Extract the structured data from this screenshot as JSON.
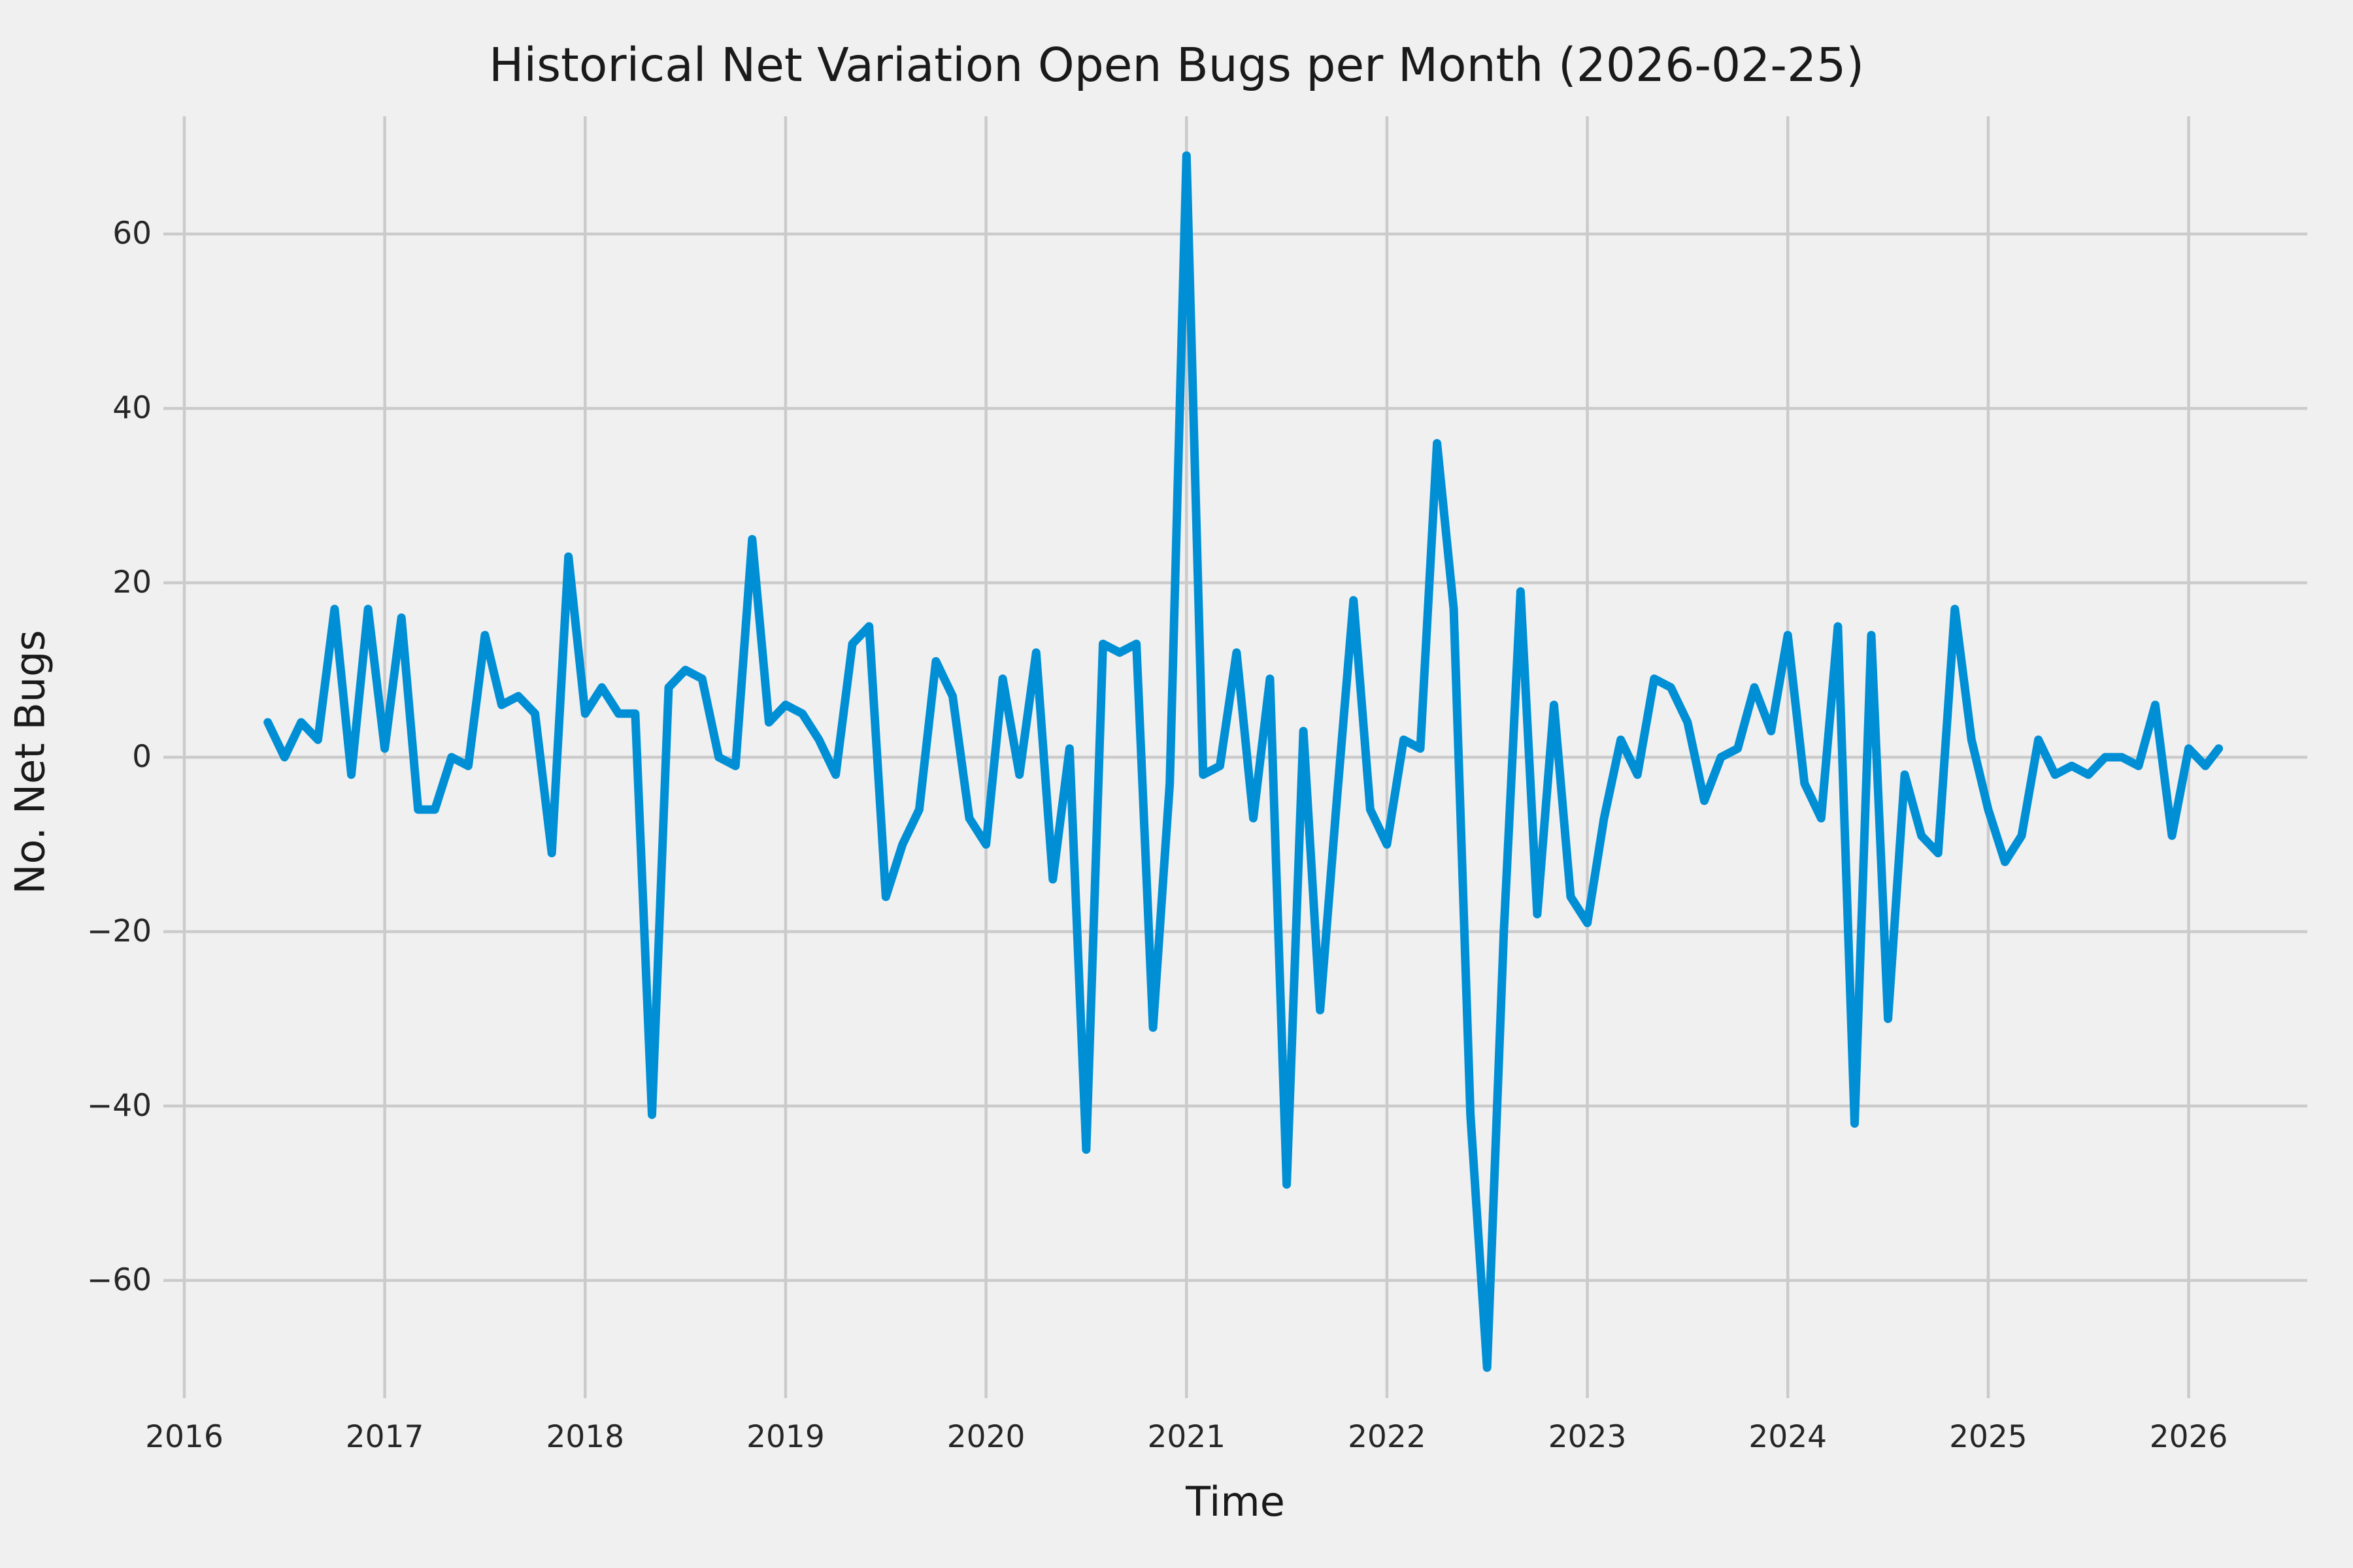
{
  "figure": {
    "title": "Historical Net Variation Open Bugs per Month (2026-02-25)"
  },
  "chart_data": {
    "type": "line",
    "title": "Historical Net Variation Open Bugs per Month (2026-02-25)",
    "xlabel": "Time",
    "ylabel": "No. Net Bugs",
    "legend": false,
    "grid": true,
    "style": "fivethirtyeight",
    "line_color": "#008FD5",
    "grid_color": "#CBCBCB",
    "background_color": "#F0F0F0",
    "text_color": "#1a1a1a",
    "x_tick_labels": [
      "2016",
      "2017",
      "2018",
      "2019",
      "2020",
      "2021",
      "2022",
      "2023",
      "2024",
      "2025",
      "2026"
    ],
    "y_tick_labels": [
      "60",
      "40",
      "20",
      "0",
      "−20",
      "−40",
      "−60"
    ],
    "y_tick_values": [
      60,
      40,
      20,
      0,
      -20,
      -40,
      -60
    ],
    "ylim": [
      -73.5,
      73.5
    ],
    "xlim_months_from_2016_01": [
      -1.25,
      127.1
    ],
    "dates": [
      "2016-06",
      "2016-07",
      "2016-08",
      "2016-09",
      "2016-10",
      "2016-11",
      "2016-12",
      "2017-01",
      "2017-02",
      "2017-03",
      "2017-04",
      "2017-05",
      "2017-06",
      "2017-07",
      "2017-08",
      "2017-09",
      "2017-10",
      "2017-11",
      "2017-12",
      "2018-01",
      "2018-02",
      "2018-03",
      "2018-04",
      "2018-05",
      "2018-06",
      "2018-07",
      "2018-08",
      "2018-09",
      "2018-10",
      "2018-11",
      "2018-12",
      "2019-01",
      "2019-02",
      "2019-03",
      "2019-04",
      "2019-05",
      "2019-06",
      "2019-07",
      "2019-08",
      "2019-09",
      "2019-10",
      "2019-11",
      "2019-12",
      "2020-01",
      "2020-02",
      "2020-03",
      "2020-04",
      "2020-05",
      "2020-06",
      "2020-07",
      "2020-08",
      "2020-09",
      "2020-10",
      "2020-11",
      "2020-12",
      "2021-01",
      "2021-02",
      "2021-03",
      "2021-04",
      "2021-05",
      "2021-06",
      "2021-07",
      "2021-08",
      "2021-09",
      "2021-10",
      "2021-11",
      "2021-12",
      "2022-01",
      "2022-02",
      "2022-03",
      "2022-04",
      "2022-05",
      "2022-06",
      "2022-07",
      "2022-08",
      "2022-09",
      "2022-10",
      "2022-11",
      "2022-12",
      "2023-01",
      "2023-02",
      "2023-03",
      "2023-04",
      "2023-05",
      "2023-06",
      "2023-07",
      "2023-08",
      "2023-09",
      "2023-10",
      "2023-11",
      "2023-12",
      "2024-01",
      "2024-02",
      "2024-03",
      "2024-04",
      "2024-05",
      "2024-06",
      "2024-07",
      "2024-08",
      "2024-09",
      "2024-10",
      "2024-11",
      "2024-12",
      "2025-01",
      "2025-02",
      "2025-03",
      "2025-04",
      "2025-05",
      "2025-06",
      "2025-07",
      "2025-08",
      "2025-09",
      "2025-10",
      "2025-11",
      "2025-12",
      "2026-01",
      "2026-02",
      "2026-02-25"
    ],
    "values": [
      4,
      0,
      4,
      2,
      17,
      -2,
      17,
      1,
      16,
      -6,
      -6,
      0,
      -1,
      14,
      6,
      7,
      5,
      -11,
      23,
      5,
      8,
      5,
      5,
      -41,
      8,
      10,
      9,
      0,
      -1,
      25,
      4,
      6,
      5,
      2,
      -2,
      13,
      15,
      -16,
      -10,
      -6,
      11,
      7,
      -7,
      -10,
      9,
      -2,
      12,
      -14,
      1,
      -45,
      13,
      12,
      13,
      -31,
      -3,
      69,
      -2,
      -1,
      12,
      -7,
      9,
      -49,
      3,
      -29,
      -5,
      18,
      -6,
      -10,
      2,
      1,
      36,
      17,
      -41,
      -70,
      -20,
      19,
      -18,
      6,
      -16,
      -19,
      -7,
      2,
      -2,
      9,
      8,
      4,
      -5,
      0,
      1,
      8,
      3,
      14,
      -3,
      -7,
      15,
      -42,
      14,
      -30,
      -2,
      -9,
      -11,
      17,
      2,
      -6,
      -12,
      -9,
      2,
      -2,
      -1,
      -2,
      0,
      0,
      -1,
      6,
      -9,
      1,
      -1,
      1
    ]
  }
}
